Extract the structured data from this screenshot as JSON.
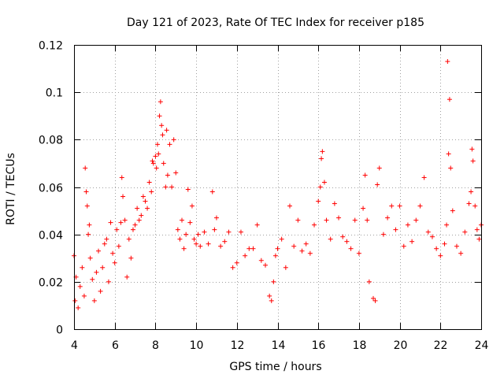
{
  "chart_data": {
    "type": "scatter",
    "title": "Day 121 of 2023, Rate Of TEC Index for receiver p185",
    "xlabel": "GPS time / hours",
    "ylabel": "ROTI / TECUs",
    "xlim": [
      4,
      24
    ],
    "ylim": [
      0,
      0.12
    ],
    "x_ticks": [
      "4",
      "6",
      "8",
      "10",
      "12",
      "14",
      "16",
      "18",
      "20",
      "22",
      "24"
    ],
    "y_ticks": [
      "0",
      "0.02",
      "0.04",
      "0.06",
      "0.08",
      "0.1",
      "0.12"
    ],
    "grid": true,
    "marker": "+",
    "color": "#ff0000",
    "series": [
      {
        "points": [
          [
            4.0,
            0.031
          ],
          [
            4.05,
            0.012
          ],
          [
            4.1,
            0.022
          ],
          [
            4.2,
            0.009
          ],
          [
            4.3,
            0.018
          ],
          [
            4.4,
            0.026
          ],
          [
            4.5,
            0.014
          ],
          [
            4.55,
            0.068
          ],
          [
            4.6,
            0.058
          ],
          [
            4.65,
            0.052
          ],
          [
            4.7,
            0.04
          ],
          [
            4.75,
            0.044
          ],
          [
            4.8,
            0.03
          ],
          [
            4.9,
            0.021
          ],
          [
            5.0,
            0.012
          ],
          [
            5.1,
            0.024
          ],
          [
            5.2,
            0.033
          ],
          [
            5.3,
            0.016
          ],
          [
            5.4,
            0.026
          ],
          [
            5.5,
            0.036
          ],
          [
            5.6,
            0.038
          ],
          [
            5.7,
            0.02
          ],
          [
            5.8,
            0.045
          ],
          [
            5.9,
            0.032
          ],
          [
            6.0,
            0.028
          ],
          [
            6.1,
            0.042
          ],
          [
            6.2,
            0.035
          ],
          [
            6.3,
            0.045
          ],
          [
            6.35,
            0.064
          ],
          [
            6.4,
            0.056
          ],
          [
            6.5,
            0.046
          ],
          [
            6.6,
            0.022
          ],
          [
            6.7,
            0.038
          ],
          [
            6.8,
            0.03
          ],
          [
            6.9,
            0.042
          ],
          [
            7.0,
            0.044
          ],
          [
            7.1,
            0.051
          ],
          [
            7.2,
            0.046
          ],
          [
            7.3,
            0.048
          ],
          [
            7.4,
            0.056
          ],
          [
            7.5,
            0.054
          ],
          [
            7.6,
            0.051
          ],
          [
            7.7,
            0.062
          ],
          [
            7.8,
            0.058
          ],
          [
            7.85,
            0.071
          ],
          [
            7.9,
            0.07
          ],
          [
            8.0,
            0.073
          ],
          [
            8.05,
            0.068
          ],
          [
            8.1,
            0.078
          ],
          [
            8.15,
            0.074
          ],
          [
            8.2,
            0.09
          ],
          [
            8.25,
            0.096
          ],
          [
            8.3,
            0.086
          ],
          [
            8.35,
            0.082
          ],
          [
            8.4,
            0.07
          ],
          [
            8.5,
            0.06
          ],
          [
            8.55,
            0.084
          ],
          [
            8.6,
            0.065
          ],
          [
            8.7,
            0.078
          ],
          [
            8.8,
            0.06
          ],
          [
            8.9,
            0.08
          ],
          [
            9.0,
            0.066
          ],
          [
            9.1,
            0.042
          ],
          [
            9.2,
            0.038
          ],
          [
            9.3,
            0.046
          ],
          [
            9.4,
            0.034
          ],
          [
            9.5,
            0.04
          ],
          [
            9.6,
            0.059
          ],
          [
            9.7,
            0.045
          ],
          [
            9.8,
            0.052
          ],
          [
            9.9,
            0.038
          ],
          [
            10.0,
            0.036
          ],
          [
            10.1,
            0.04
          ],
          [
            10.2,
            0.035
          ],
          [
            10.4,
            0.041
          ],
          [
            10.6,
            0.036
          ],
          [
            10.8,
            0.058
          ],
          [
            10.9,
            0.042
          ],
          [
            11.0,
            0.047
          ],
          [
            11.2,
            0.035
          ],
          [
            11.4,
            0.037
          ],
          [
            11.6,
            0.041
          ],
          [
            11.8,
            0.026
          ],
          [
            12.0,
            0.028
          ],
          [
            12.2,
            0.041
          ],
          [
            12.4,
            0.031
          ],
          [
            12.6,
            0.034
          ],
          [
            12.8,
            0.034
          ],
          [
            13.0,
            0.044
          ],
          [
            13.2,
            0.029
          ],
          [
            13.4,
            0.027
          ],
          [
            13.6,
            0.014
          ],
          [
            13.7,
            0.012
          ],
          [
            13.8,
            0.02
          ],
          [
            13.9,
            0.031
          ],
          [
            14.0,
            0.034
          ],
          [
            14.2,
            0.038
          ],
          [
            14.4,
            0.026
          ],
          [
            14.6,
            0.052
          ],
          [
            14.8,
            0.035
          ],
          [
            15.0,
            0.046
          ],
          [
            15.2,
            0.033
          ],
          [
            15.4,
            0.036
          ],
          [
            15.6,
            0.032
          ],
          [
            15.8,
            0.044
          ],
          [
            16.0,
            0.054
          ],
          [
            16.1,
            0.06
          ],
          [
            16.15,
            0.072
          ],
          [
            16.2,
            0.075
          ],
          [
            16.3,
            0.062
          ],
          [
            16.4,
            0.046
          ],
          [
            16.6,
            0.038
          ],
          [
            16.8,
            0.053
          ],
          [
            17.0,
            0.047
          ],
          [
            17.2,
            0.039
          ],
          [
            17.4,
            0.037
          ],
          [
            17.6,
            0.034
          ],
          [
            17.8,
            0.046
          ],
          [
            18.0,
            0.032
          ],
          [
            18.2,
            0.051
          ],
          [
            18.3,
            0.065
          ],
          [
            18.4,
            0.046
          ],
          [
            18.5,
            0.02
          ],
          [
            18.7,
            0.013
          ],
          [
            18.8,
            0.012
          ],
          [
            18.9,
            0.061
          ],
          [
            19.0,
            0.068
          ],
          [
            19.2,
            0.04
          ],
          [
            19.4,
            0.047
          ],
          [
            19.6,
            0.052
          ],
          [
            19.8,
            0.042
          ],
          [
            20.0,
            0.052
          ],
          [
            20.2,
            0.035
          ],
          [
            20.4,
            0.044
          ],
          [
            20.6,
            0.037
          ],
          [
            20.8,
            0.046
          ],
          [
            21.0,
            0.052
          ],
          [
            21.2,
            0.064
          ],
          [
            21.4,
            0.041
          ],
          [
            21.6,
            0.039
          ],
          [
            21.8,
            0.034
          ],
          [
            22.0,
            0.031
          ],
          [
            22.2,
            0.036
          ],
          [
            22.3,
            0.044
          ],
          [
            22.35,
            0.113
          ],
          [
            22.4,
            0.074
          ],
          [
            22.45,
            0.097
          ],
          [
            22.5,
            0.068
          ],
          [
            22.6,
            0.05
          ],
          [
            22.8,
            0.035
          ],
          [
            23.0,
            0.032
          ],
          [
            23.2,
            0.041
          ],
          [
            23.4,
            0.053
          ],
          [
            23.5,
            0.058
          ],
          [
            23.55,
            0.076
          ],
          [
            23.6,
            0.071
          ],
          [
            23.7,
            0.052
          ],
          [
            23.8,
            0.042
          ],
          [
            23.9,
            0.038
          ],
          [
            24.0,
            0.044
          ]
        ]
      }
    ]
  }
}
